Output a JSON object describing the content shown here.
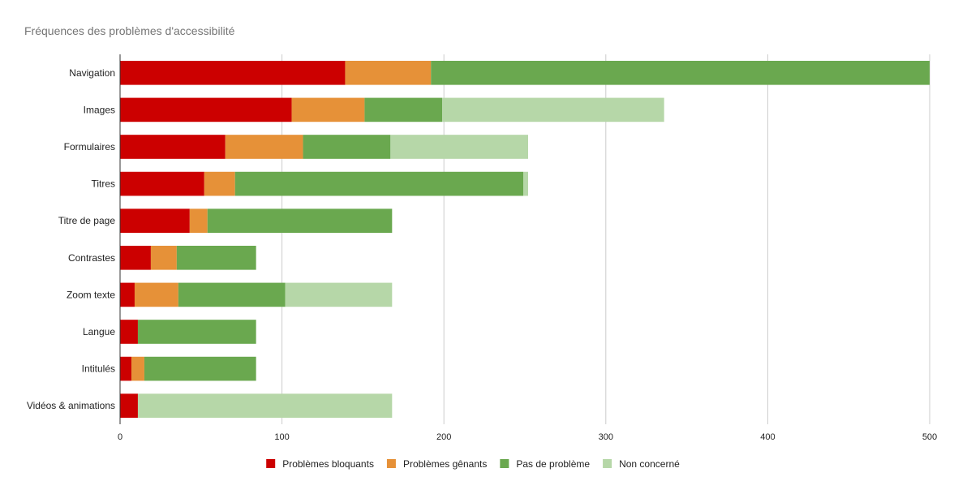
{
  "chart_data": {
    "type": "bar",
    "orientation": "horizontal",
    "stacked": true,
    "title": "Fréquences des problèmes d'accessibilité",
    "categories": [
      "Navigation",
      "Images",
      "Formulaires",
      "Titres",
      "Titre de page",
      "Contrastes",
      "Zoom texte",
      "Langue",
      "Intitulés",
      "Vidéos & animations"
    ],
    "series": [
      {
        "name": "Problèmes bloquants",
        "color": "#cc0000",
        "values": [
          139,
          106,
          65,
          52,
          43,
          19,
          9,
          11,
          7,
          11
        ]
      },
      {
        "name": "Problèmes gênants",
        "color": "#e69138",
        "values": [
          53,
          45,
          48,
          19,
          11,
          16,
          27,
          0,
          8,
          0
        ]
      },
      {
        "name": "Pas de problème",
        "color": "#6aa84f",
        "values": [
          308,
          48,
          54,
          178,
          114,
          49,
          66,
          73,
          69,
          0
        ]
      },
      {
        "name": "Non concerné",
        "color": "#b6d7a8",
        "values": [
          0,
          137,
          85,
          3,
          0,
          0,
          66,
          0,
          0,
          157
        ]
      }
    ],
    "xlim": [
      0,
      500
    ],
    "xticks": [
      0,
      100,
      200,
      300,
      400,
      500
    ],
    "grid": true,
    "legend_position": "bottom"
  }
}
